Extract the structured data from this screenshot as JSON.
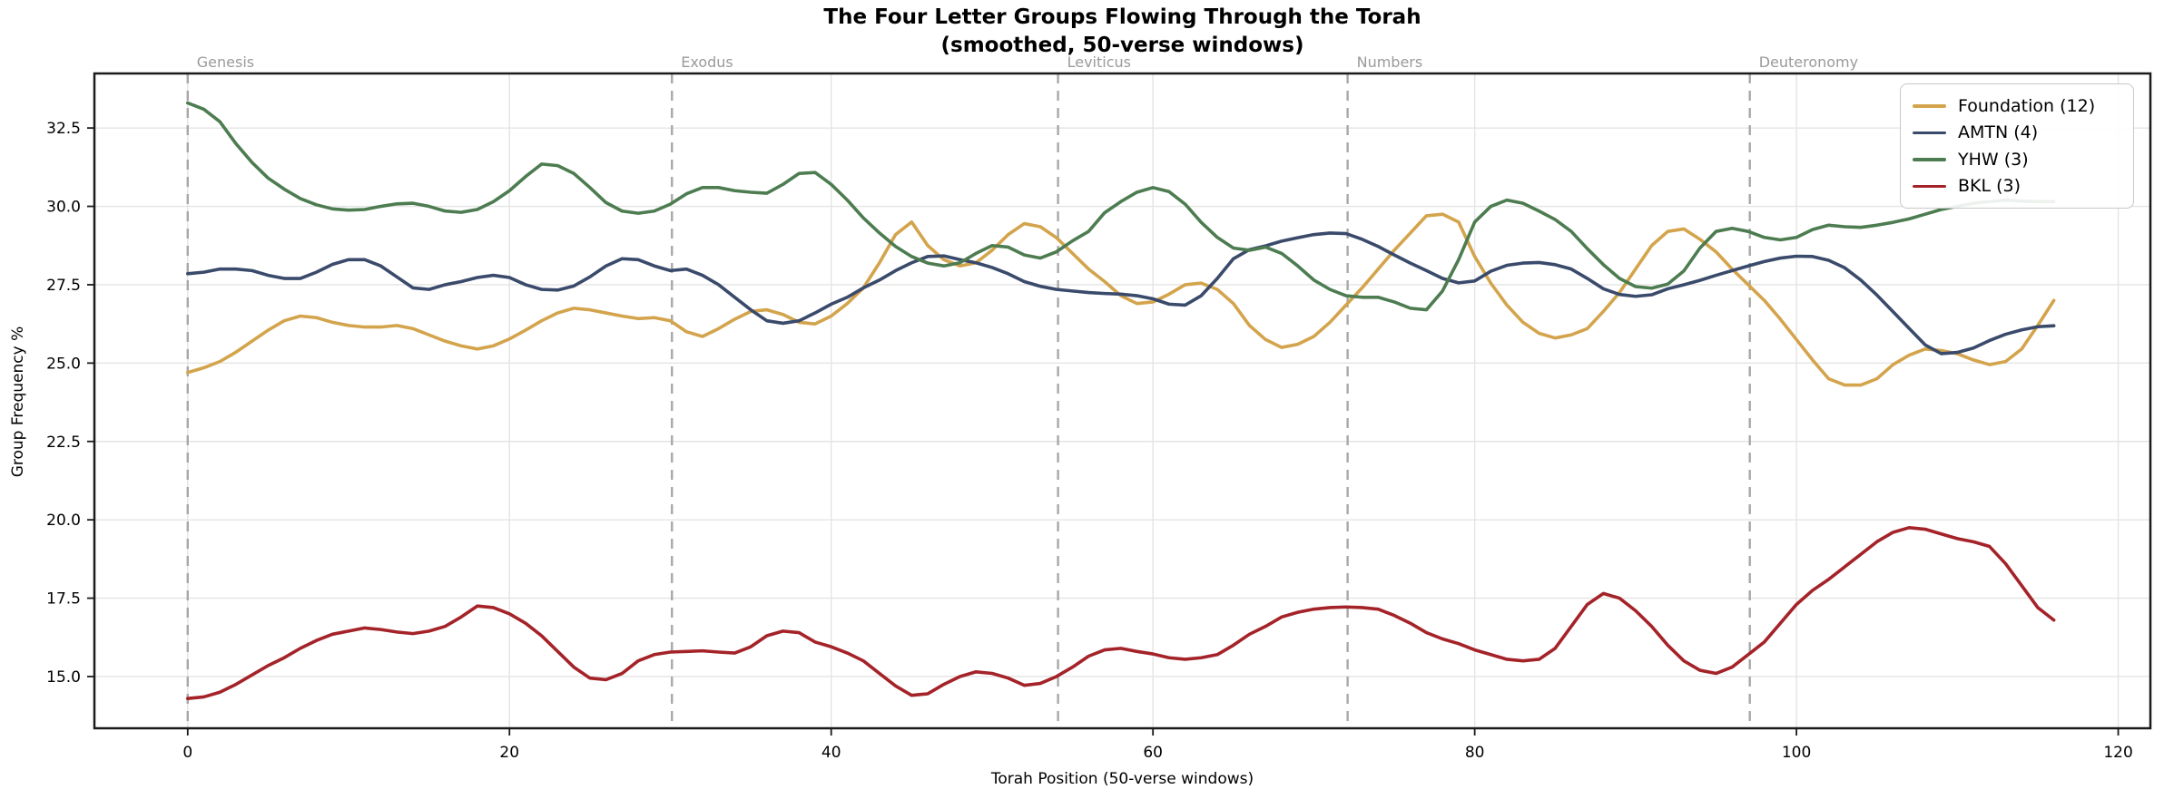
{
  "title": {
    "line1": "The Four Letter Groups Flowing Through the Torah",
    "line2": "(smoothed, 50-verse windows)"
  },
  "axes": {
    "xlabel": "Torah Position (50-verse windows)",
    "ylabel": "Group Frequency %",
    "xlim": [
      -5.8,
      122.0
    ],
    "ylim": [
      13.35,
      34.24
    ],
    "x_ticks": [
      0,
      20,
      40,
      60,
      80,
      100,
      120
    ],
    "x_tick_labels": [
      "0",
      "20",
      "40",
      "60",
      "80",
      "100",
      "120"
    ],
    "y_ticks": [
      15.0,
      17.5,
      20.0,
      22.5,
      25.0,
      27.5,
      30.0,
      32.5
    ],
    "y_tick_labels": [
      "15.0",
      "17.5",
      "20.0",
      "22.5",
      "25.0",
      "27.5",
      "30.0",
      "32.5"
    ],
    "grid": true,
    "grid_color": "#e4e4e4",
    "spine_color": "#1a1a1a",
    "book_line_color": "#a8a8a8",
    "book_label_color": "#9a9a9a"
  },
  "book_boundaries": [
    {
      "name": "Genesis",
      "x": 0
    },
    {
      "name": "Exodus",
      "x": 30.1
    },
    {
      "name": "Leviticus",
      "x": 54.1
    },
    {
      "name": "Numbers",
      "x": 72.1
    },
    {
      "name": "Deuteronomy",
      "x": 97.1
    }
  ],
  "legend": {
    "position": "top-right",
    "items": [
      {
        "label": "Foundation (12)",
        "color": "#d3a44c"
      },
      {
        "label": "AMTN (4)",
        "color": "#3a4a6b"
      },
      {
        "label": "YHW (3)",
        "color": "#4c7c50"
      },
      {
        "label": "BKL (3)",
        "color": "#a42329"
      }
    ]
  },
  "chart_data": {
    "type": "line",
    "title": "The Four Letter Groups Flowing Through the Torah (smoothed, 50-verse windows)",
    "xlabel": "Torah Position (50-verse windows)",
    "ylabel": "Group Frequency %",
    "xlim": [
      -5.8,
      122.0
    ],
    "ylim": [
      13.35,
      34.24
    ],
    "grid": true,
    "legend_position": "upper right",
    "x": [
      0,
      1,
      2,
      3,
      4,
      5,
      6,
      7,
      8,
      9,
      10,
      11,
      12,
      13,
      14,
      15,
      16,
      17,
      18,
      19,
      20,
      21,
      22,
      23,
      24,
      25,
      26,
      27,
      28,
      29,
      30,
      31,
      32,
      33,
      34,
      35,
      36,
      37,
      38,
      39,
      40,
      41,
      42,
      43,
      44,
      45,
      46,
      47,
      48,
      49,
      50,
      51,
      52,
      53,
      54,
      55,
      56,
      57,
      58,
      59,
      60,
      61,
      62,
      63,
      64,
      65,
      66,
      67,
      68,
      69,
      70,
      71,
      72,
      73,
      74,
      75,
      76,
      77,
      78,
      79,
      80,
      81,
      82,
      83,
      84,
      85,
      86,
      87,
      88,
      89,
      90,
      91,
      92,
      93,
      94,
      95,
      96,
      97,
      98,
      99,
      100,
      101,
      102,
      103,
      104,
      105,
      106,
      107,
      108,
      109,
      110,
      111,
      112,
      113,
      114,
      115,
      116
    ],
    "series": [
      {
        "name": "Foundation (12)",
        "color": "#d3a44c",
        "values": [
          24.7,
          24.85,
          25.05,
          25.35,
          25.7,
          26.05,
          26.35,
          26.5,
          26.45,
          26.3,
          26.2,
          26.15,
          26.15,
          26.2,
          26.1,
          25.9,
          25.7,
          25.55,
          25.45,
          25.55,
          25.77,
          26.05,
          26.35,
          26.6,
          26.75,
          26.7,
          26.6,
          26.5,
          26.42,
          26.45,
          26.35,
          26.0,
          25.85,
          26.1,
          26.4,
          26.65,
          26.7,
          26.55,
          26.3,
          26.25,
          26.5,
          26.9,
          27.4,
          28.2,
          29.1,
          29.5,
          28.75,
          28.3,
          28.1,
          28.2,
          28.6,
          29.1,
          29.45,
          29.35,
          29.0,
          28.5,
          28.0,
          27.6,
          27.15,
          26.9,
          26.95,
          27.2,
          27.5,
          27.55,
          27.35,
          26.9,
          26.2,
          25.75,
          25.5,
          25.6,
          25.85,
          26.3,
          26.85,
          27.4,
          28.0,
          28.6,
          29.15,
          29.7,
          29.75,
          29.5,
          28.4,
          27.55,
          26.85,
          26.3,
          25.95,
          25.8,
          25.9,
          26.1,
          26.65,
          27.25,
          28.0,
          28.75,
          29.2,
          29.28,
          28.95,
          28.55,
          28.0,
          27.5,
          27.0,
          26.4,
          25.75,
          25.1,
          24.5,
          24.3,
          24.3,
          24.5,
          24.95,
          25.25,
          25.45,
          25.4,
          25.3,
          25.1,
          24.95,
          25.05,
          25.45,
          26.2,
          27.0
        ]
      },
      {
        "name": "AMTN (4)",
        "color": "#3a4a6b",
        "values": [
          27.85,
          27.9,
          28.0,
          28.0,
          27.95,
          27.8,
          27.7,
          27.7,
          27.9,
          28.15,
          28.3,
          28.3,
          28.1,
          27.75,
          27.4,
          27.35,
          27.5,
          27.6,
          27.73,
          27.8,
          27.73,
          27.5,
          27.35,
          27.33,
          27.46,
          27.75,
          28.1,
          28.33,
          28.3,
          28.1,
          27.95,
          28.0,
          27.8,
          27.5,
          27.1,
          26.7,
          26.35,
          26.27,
          26.35,
          26.6,
          26.88,
          27.1,
          27.4,
          27.65,
          27.95,
          28.2,
          28.4,
          28.42,
          28.3,
          28.2,
          28.05,
          27.85,
          27.6,
          27.45,
          27.35,
          27.3,
          27.25,
          27.22,
          27.2,
          27.15,
          27.05,
          26.88,
          26.85,
          27.15,
          27.7,
          28.33,
          28.62,
          28.74,
          28.89,
          29.0,
          29.1,
          29.15,
          29.13,
          28.95,
          28.72,
          28.45,
          28.19,
          27.95,
          27.7,
          27.56,
          27.62,
          27.93,
          28.12,
          28.19,
          28.21,
          28.14,
          28.0,
          27.7,
          27.37,
          27.19,
          27.13,
          27.18,
          27.37,
          27.5,
          27.64,
          27.8,
          27.95,
          28.1,
          28.24,
          28.35,
          28.41,
          28.4,
          28.28,
          28.04,
          27.65,
          27.17,
          26.64,
          26.11,
          25.58,
          25.3,
          25.34,
          25.48,
          25.72,
          25.92,
          26.06,
          26.16,
          26.19
        ]
      },
      {
        "name": "YHW (3)",
        "color": "#4c7c50",
        "values": [
          33.3,
          33.1,
          32.7,
          32.0,
          31.4,
          30.9,
          30.55,
          30.25,
          30.05,
          29.92,
          29.88,
          29.9,
          30.0,
          30.08,
          30.1,
          30.0,
          29.85,
          29.81,
          29.9,
          30.15,
          30.5,
          30.95,
          31.35,
          31.3,
          31.05,
          30.6,
          30.12,
          29.85,
          29.78,
          29.85,
          30.07,
          30.4,
          30.6,
          30.6,
          30.5,
          30.45,
          30.42,
          30.7,
          31.05,
          31.08,
          30.7,
          30.2,
          29.63,
          29.15,
          28.72,
          28.4,
          28.19,
          28.1,
          28.2,
          28.5,
          28.75,
          28.7,
          28.45,
          28.35,
          28.55,
          28.9,
          29.2,
          29.8,
          30.15,
          30.45,
          30.6,
          30.47,
          30.07,
          29.49,
          29.01,
          28.67,
          28.6,
          28.7,
          28.5,
          28.1,
          27.65,
          27.35,
          27.15,
          27.1,
          27.1,
          26.95,
          26.75,
          26.7,
          27.3,
          28.3,
          29.5,
          30.0,
          30.2,
          30.1,
          29.85,
          29.58,
          29.2,
          28.65,
          28.14,
          27.7,
          27.44,
          27.39,
          27.52,
          27.94,
          28.67,
          29.2,
          29.3,
          29.2,
          29.01,
          28.93,
          29.01,
          29.26,
          29.4,
          29.35,
          29.33,
          29.4,
          29.49,
          29.6,
          29.75,
          29.9,
          30.0,
          30.1,
          30.15,
          30.2,
          30.17,
          30.15,
          30.15
        ]
      },
      {
        "name": "BKL (3)",
        "color": "#a42329",
        "values": [
          14.3,
          14.35,
          14.5,
          14.75,
          15.05,
          15.35,
          15.6,
          15.9,
          16.15,
          16.35,
          16.45,
          16.55,
          16.5,
          16.42,
          16.37,
          16.45,
          16.6,
          16.9,
          17.25,
          17.2,
          17.0,
          16.7,
          16.3,
          15.8,
          15.3,
          14.95,
          14.9,
          15.1,
          15.5,
          15.7,
          15.78,
          15.8,
          15.82,
          15.78,
          15.75,
          15.95,
          16.3,
          16.45,
          16.4,
          16.1,
          15.95,
          15.75,
          15.5,
          15.1,
          14.7,
          14.4,
          14.45,
          14.75,
          15.0,
          15.15,
          15.1,
          14.95,
          14.72,
          14.78,
          15.0,
          15.3,
          15.65,
          15.85,
          15.9,
          15.8,
          15.72,
          15.6,
          15.55,
          15.6,
          15.7,
          16.0,
          16.35,
          16.6,
          16.9,
          17.05,
          17.15,
          17.2,
          17.22,
          17.2,
          17.15,
          16.95,
          16.7,
          16.4,
          16.2,
          16.05,
          15.85,
          15.7,
          15.55,
          15.5,
          15.55,
          15.9,
          16.6,
          17.3,
          17.65,
          17.5,
          17.1,
          16.6,
          16.0,
          15.5,
          15.2,
          15.1,
          15.3,
          15.7,
          16.1,
          16.7,
          17.3,
          17.75,
          18.1,
          18.5,
          18.9,
          19.3,
          19.6,
          19.75,
          19.7,
          19.55,
          19.4,
          19.3,
          19.15,
          18.6,
          17.9,
          17.2,
          16.8
        ]
      }
    ]
  }
}
